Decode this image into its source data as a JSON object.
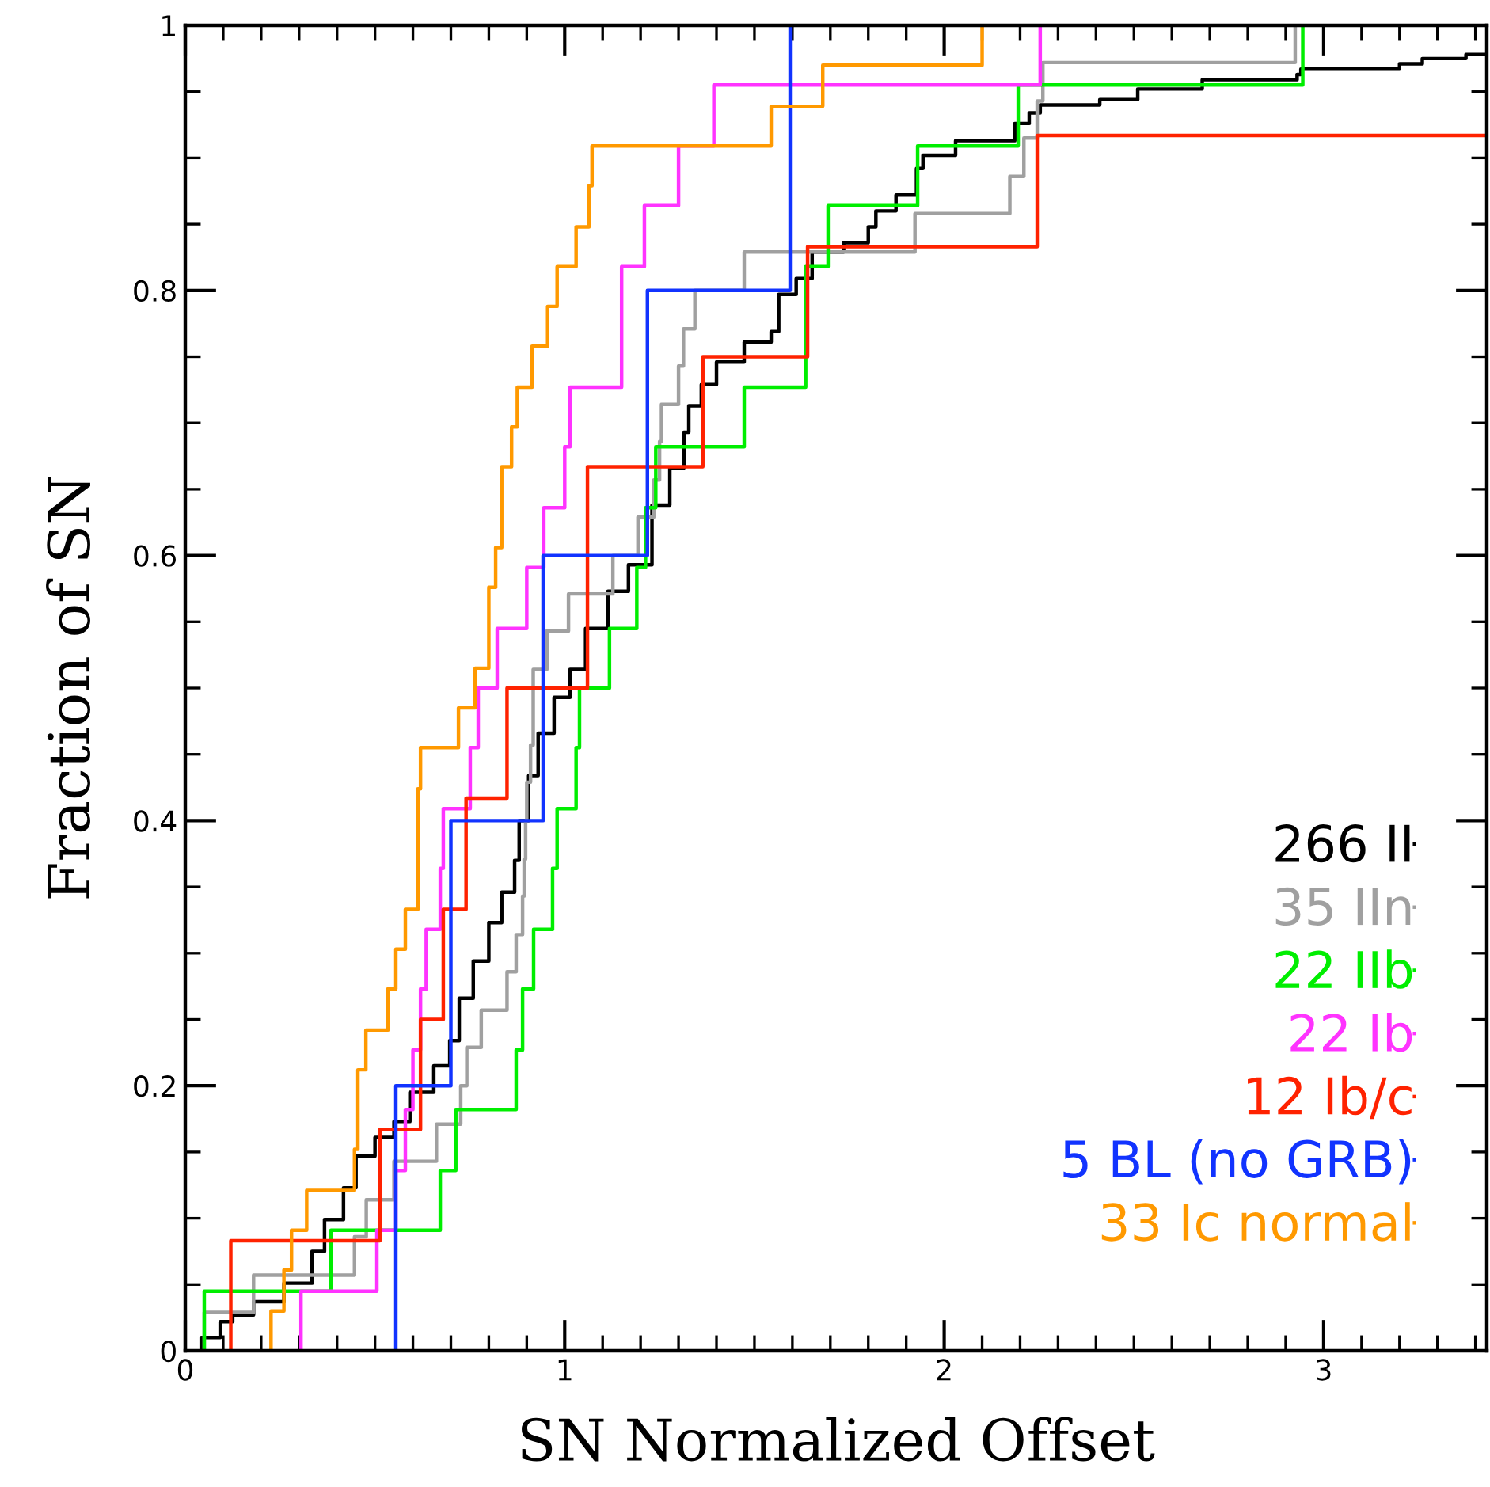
{
  "chart_data": {
    "type": "step",
    "xlabel": "SN Normalized Offset",
    "ylabel": "Fraction of SN",
    "xlim": [
      0,
      3.43
    ],
    "ylim": [
      0,
      1
    ],
    "xticks": [
      0,
      1,
      2,
      3
    ],
    "yticks": [
      0,
      0.2,
      0.4,
      0.6,
      0.8,
      1
    ],
    "legend": "bottom right",
    "grid": false,
    "series": [
      {
        "name": "266 II",
        "color": "#000000",
        "x": [
          0.042,
          0.042,
          0.092,
          0.125,
          0.18,
          0.26,
          0.334,
          0.367,
          0.417,
          0.45,
          0.5,
          0.55,
          0.592,
          0.655,
          0.697,
          0.722,
          0.759,
          0.8,
          0.834,
          0.868,
          0.88,
          0.905,
          0.93,
          0.972,
          1.014,
          1.055,
          1.114,
          1.168,
          1.23,
          1.277,
          1.314,
          1.327,
          1.36,
          1.4,
          1.473,
          1.544,
          1.564,
          1.61,
          1.652,
          1.735,
          1.8,
          1.82,
          1.873,
          1.927,
          1.944,
          2.03,
          2.186,
          2.224,
          2.253,
          2.41,
          2.51,
          2.68,
          2.93,
          2.94,
          3.2,
          3.26,
          3.375,
          3.43
        ],
        "values": [
          0,
          0.01,
          0.022,
          0.027,
          0.037,
          0.051,
          0.075,
          0.099,
          0.123,
          0.147,
          0.161,
          0.173,
          0.195,
          0.215,
          0.234,
          0.266,
          0.294,
          0.323,
          0.346,
          0.37,
          0.4,
          0.434,
          0.466,
          0.493,
          0.514,
          0.545,
          0.573,
          0.593,
          0.638,
          0.666,
          0.693,
          0.713,
          0.729,
          0.746,
          0.761,
          0.769,
          0.797,
          0.809,
          0.829,
          0.836,
          0.848,
          0.86,
          0.872,
          0.892,
          0.902,
          0.913,
          0.926,
          0.934,
          0.94,
          0.944,
          0.952,
          0.959,
          0.963,
          0.967,
          0.971,
          0.975,
          0.978,
          0.978
        ]
      },
      {
        "name": "35 IIn",
        "color": "#a0a0a0",
        "x": [
          0.05,
          0.05,
          0.12,
          0.18,
          0.446,
          0.477,
          0.55,
          0.662,
          0.726,
          0.742,
          0.78,
          0.848,
          0.872,
          0.889,
          0.893,
          0.897,
          0.9,
          0.91,
          0.917,
          0.953,
          1.01,
          1.127,
          1.193,
          1.235,
          1.25,
          1.255,
          1.3,
          1.313,
          1.343,
          1.473,
          1.923,
          2.173,
          2.21,
          2.245,
          2.26,
          2.925
        ],
        "values": [
          0,
          0.029,
          0.029,
          0.057,
          0.086,
          0.114,
          0.143,
          0.171,
          0.2,
          0.229,
          0.257,
          0.286,
          0.314,
          0.343,
          0.371,
          0.4,
          0.429,
          0.457,
          0.514,
          0.543,
          0.571,
          0.6,
          0.629,
          0.657,
          0.686,
          0.714,
          0.743,
          0.771,
          0.8,
          0.829,
          0.858,
          0.886,
          0.915,
          0.943,
          0.972,
          1.0
        ]
      },
      {
        "name": "22 IIb",
        "color": "#00ee00",
        "x": [
          0.05,
          0.05,
          0.384,
          0.672,
          0.713,
          0.872,
          0.889,
          0.918,
          0.968,
          0.98,
          1.03,
          1.039,
          1.118,
          1.19,
          1.213,
          1.24,
          1.473,
          1.635,
          1.694,
          1.93,
          2.195,
          2.945
        ],
        "values": [
          0,
          0.045,
          0.091,
          0.136,
          0.182,
          0.227,
          0.273,
          0.318,
          0.364,
          0.409,
          0.455,
          0.5,
          0.545,
          0.591,
          0.636,
          0.682,
          0.727,
          0.818,
          0.864,
          0.909,
          0.955,
          1.0
        ]
      },
      {
        "name": "22 Ib",
        "color": "#ff33ff",
        "x": [
          0.305,
          0.305,
          0.505,
          0.555,
          0.58,
          0.6,
          0.62,
          0.635,
          0.672,
          0.68,
          0.751,
          0.772,
          0.822,
          0.9,
          0.945,
          1.0,
          1.014,
          1.15,
          1.21,
          1.3,
          1.393,
          2.253
        ],
        "values": [
          0,
          0.045,
          0.091,
          0.136,
          0.182,
          0.227,
          0.273,
          0.318,
          0.364,
          0.409,
          0.455,
          0.5,
          0.545,
          0.591,
          0.636,
          0.682,
          0.727,
          0.818,
          0.864,
          0.909,
          0.955,
          1.0
        ]
      },
      {
        "name": "12 Ib/c",
        "color": "#ff2200",
        "x": [
          0.12,
          0.12,
          0.513,
          0.62,
          0.68,
          0.74,
          0.848,
          1.06,
          1.364,
          1.64,
          2.245,
          3.43
        ],
        "values": [
          0,
          0.083,
          0.167,
          0.25,
          0.333,
          0.417,
          0.5,
          0.667,
          0.75,
          0.833,
          0.917,
          0.917
        ]
      },
      {
        "name": "5 BL (no GRB)",
        "color": "#1133ff",
        "x": [
          0.555,
          0.555,
          0.7,
          0.943,
          1.218,
          1.594
        ],
        "values": [
          0,
          0.2,
          0.4,
          0.6,
          0.8,
          1.0
        ]
      },
      {
        "name": "33 Ic normal",
        "color": "#ff9900",
        "x": [
          0.226,
          0.226,
          0.26,
          0.28,
          0.32,
          0.446,
          0.455,
          0.476,
          0.534,
          0.555,
          0.58,
          0.613,
          0.62,
          0.72,
          0.764,
          0.8,
          0.818,
          0.834,
          0.86,
          0.875,
          0.914,
          0.955,
          0.98,
          1.03,
          1.064,
          1.072,
          1.544,
          1.68,
          2.1
        ],
        "values": [
          0,
          0.03,
          0.061,
          0.091,
          0.121,
          0.152,
          0.212,
          0.242,
          0.273,
          0.303,
          0.333,
          0.424,
          0.455,
          0.485,
          0.515,
          0.576,
          0.606,
          0.667,
          0.697,
          0.727,
          0.758,
          0.788,
          0.818,
          0.848,
          0.879,
          0.909,
          0.939,
          0.97,
          1.0
        ]
      }
    ]
  }
}
